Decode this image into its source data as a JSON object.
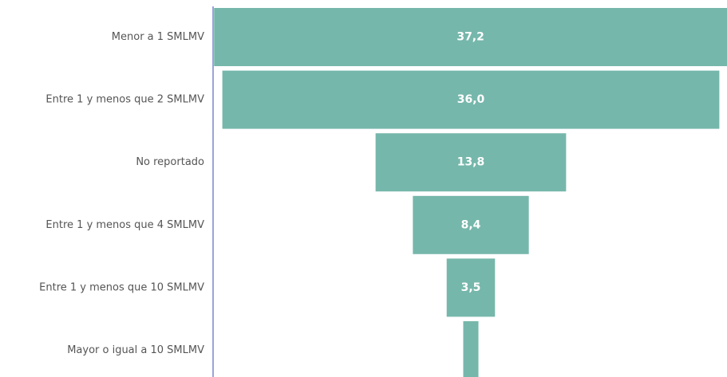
{
  "chart_data": {
    "type": "funnel",
    "categories": [
      "Menor a 1 SMLMV",
      "Entre 1 y menos que 2 SMLMV",
      "No reportado",
      "Entre 1 y menos que 4 SMLMV",
      "Entre 1 y menos que 10 SMLMV",
      "Mayor o igual a 10 SMLMV"
    ],
    "values": [
      37.2,
      36.0,
      13.8,
      8.4,
      3.5,
      1.1
    ],
    "value_labels": [
      "37,2",
      "36,0",
      "13,8",
      "8,4",
      "3,5",
      null
    ],
    "color": "#76b7ab"
  }
}
